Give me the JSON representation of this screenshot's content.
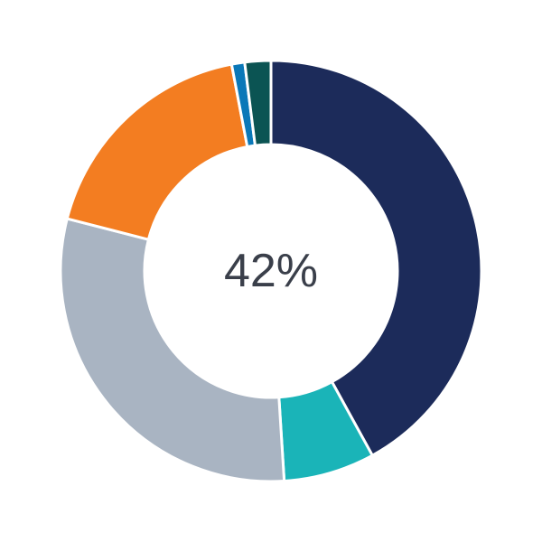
{
  "chart_data": {
    "type": "pie",
    "variant": "donut",
    "center_label": "42%",
    "start_angle": "top",
    "direction": "clockwise",
    "legend": "none",
    "slices": [
      {
        "value": 42,
        "color": "#1c2b5a"
      },
      {
        "value": 7,
        "color": "#1ab4b8"
      },
      {
        "value": 30,
        "color": "#a9b4c2"
      },
      {
        "value": 18,
        "color": "#f37d21"
      },
      {
        "value": 1,
        "color": "#0a78b8"
      },
      {
        "value": 2,
        "color": "#0b5453"
      }
    ]
  }
}
